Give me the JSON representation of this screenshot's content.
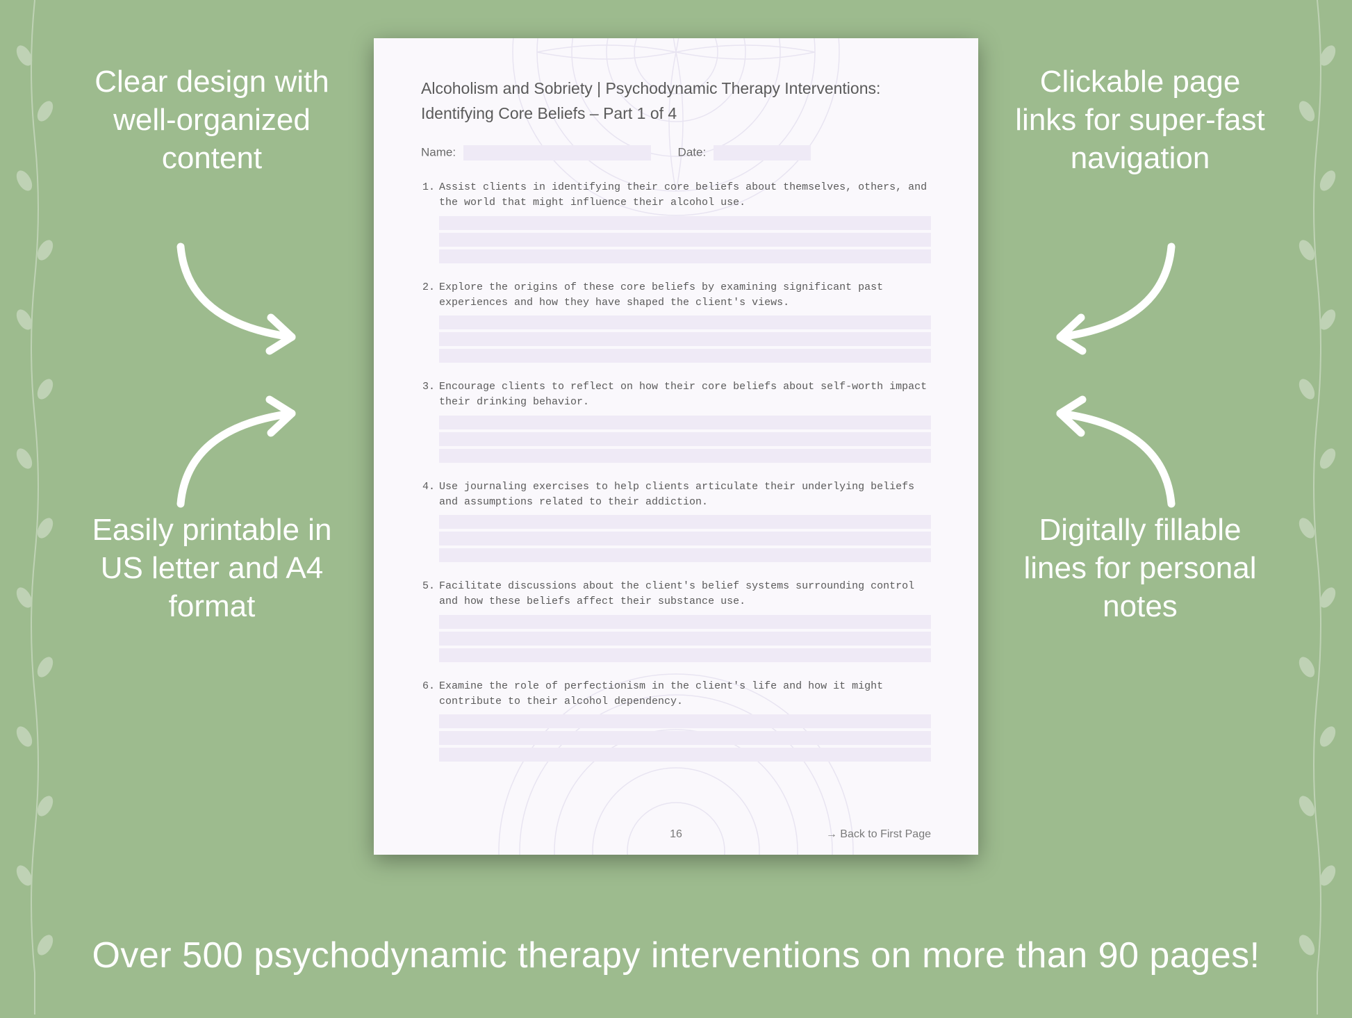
{
  "background_color": "#9dbb8e",
  "callouts": {
    "top_left": "Clear design with well-organized content",
    "top_right": "Clickable page links for super-fast navigation",
    "bottom_left": "Easily printable in US letter and A4 format",
    "bottom_right": "Digitally fillable lines for personal notes"
  },
  "banner": "Over 500 psychodynamic therapy interventions on more than 90 pages!",
  "document": {
    "title_line1": "Alcoholism and Sobriety | Psychodynamic Therapy Interventions:",
    "title_line2": "Identifying Core Beliefs – Part 1 of 4",
    "name_label": "Name:",
    "date_label": "Date:",
    "page_number": "16",
    "back_link": "→ Back to First Page",
    "line_fill_color": "#efeaf6",
    "page_bg": "#faf8fc",
    "items": [
      {
        "n": "1.",
        "text": "Assist clients in identifying their core beliefs about themselves, others, and the world that might influence their alcohol use."
      },
      {
        "n": "2.",
        "text": "Explore the origins of these core beliefs by examining significant past experiences and how they have shaped the client's views."
      },
      {
        "n": "3.",
        "text": "Encourage clients to reflect on how their core beliefs about self-worth impact their drinking behavior."
      },
      {
        "n": "4.",
        "text": "Use journaling exercises to help clients articulate their underlying beliefs and assumptions related to their addiction."
      },
      {
        "n": "5.",
        "text": "Facilitate discussions about the client's belief systems surrounding control and how these beliefs affect their substance use."
      },
      {
        "n": "6.",
        "text": "Examine the role of perfectionism in the client's life and how it might contribute to their alcohol dependency."
      }
    ]
  },
  "style": {
    "callout_color": "#ffffff",
    "callout_fontsize": 44,
    "banner_color": "#ffffff",
    "banner_fontsize": 52,
    "arrow_color": "#ffffff",
    "arrow_stroke": 10,
    "doc_shadow": "0 8px 30px rgba(0,0,0,0.35)"
  }
}
